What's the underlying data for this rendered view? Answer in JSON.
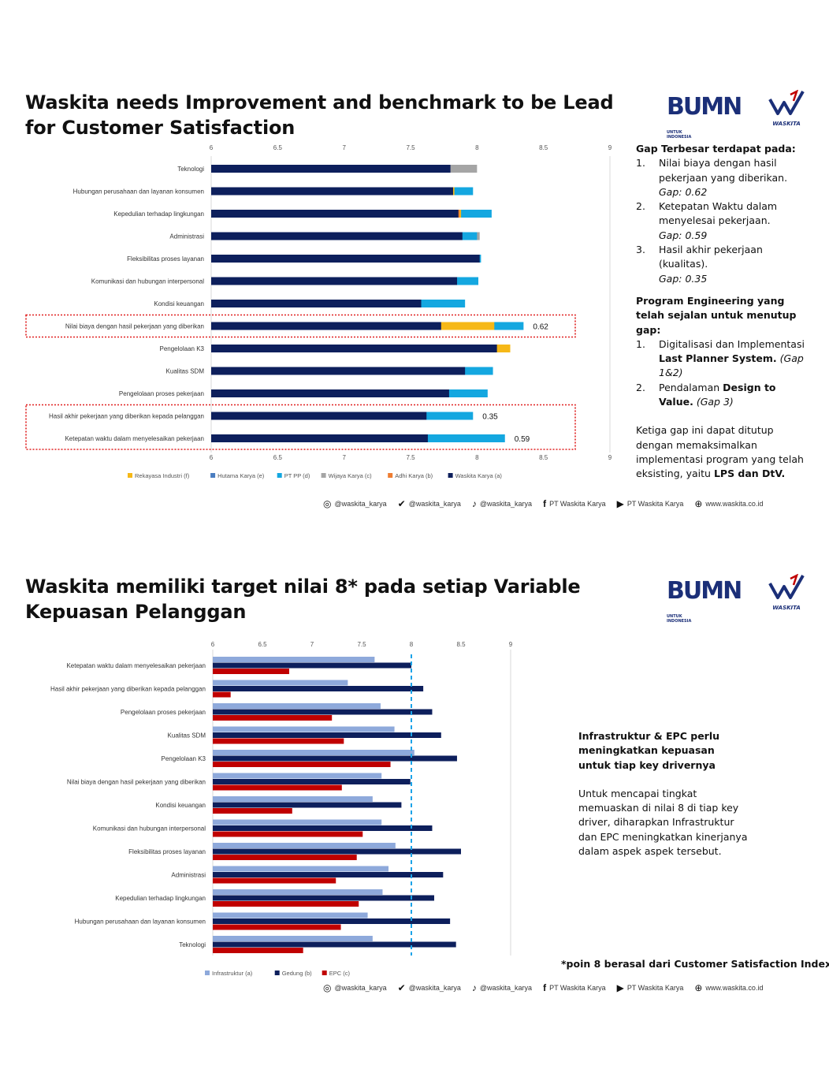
{
  "slide1": {
    "title": "Waskita needs Improvement and benchmark to be Lead for Customer Satisfaction",
    "notes": {
      "gap_heading": "Gap Terbesar terdapat pada:",
      "gaps": [
        {
          "num": "1.",
          "text": "Nilai biaya dengan hasil pekerjaan yang diberikan.",
          "gap": "Gap: 0.62"
        },
        {
          "num": "2.",
          "text": "Ketepatan Waktu dalam menyelesai pekerjaan.",
          "gap": "Gap:  0.59"
        },
        {
          "num": "3.",
          "text": "Hasil akhir pekerjaan (kualitas).",
          "gap": "Gap: 0.35"
        }
      ],
      "program_heading": "Program Engineering yang telah sejalan untuk menutup gap:",
      "programs": [
        {
          "num": "1.",
          "pre": "Digitalisasi dan Implementasi ",
          "bold": "Last Planner System.",
          "italic": " (Gap 1&2)"
        },
        {
          "num": "2.",
          "pre": "Pendalaman ",
          "bold": "Design to Value.",
          "italic": " (Gap 3)"
        }
      ],
      "closing_pre": "Ketiga gap ini dapat ditutup dengan memaksimalkan implementasi program yang telah eksisting, yaitu ",
      "closing_bold": "LPS dan DtV."
    }
  },
  "slide2": {
    "title": "Waskita memiliki target nilai 8* pada setiap Variable Kepuasan Pelanggan",
    "notes": {
      "heading": "Infrastruktur & EPC perlu meningkatkan kepuasan untuk tiap key drivernya",
      "body": "Untuk mencapai tingkat memuaskan di nilai 8 di tiap key driver, diharapkan Infrastruktur dan EPC meningkatkan kinerjanya dalam aspek aspek tersebut.",
      "footnote": "*poin 8 berasal dari Customer Satisfaction Index"
    }
  },
  "logos": {
    "bumn": "BUMN",
    "bumn_sub1": "UNTUK",
    "bumn_sub2": "INDONESIA",
    "waskita": "WASKITA"
  },
  "social": [
    {
      "icon": "instagram-icon",
      "text": "@waskita_karya"
    },
    {
      "icon": "twitter-icon",
      "text": "@waskita_karya"
    },
    {
      "icon": "tiktok-icon",
      "text": "@waskita_karya"
    },
    {
      "icon": "facebook-icon",
      "text": "PT Waskita Karya"
    },
    {
      "icon": "youtube-icon",
      "text": "PT Waskita Karya"
    },
    {
      "icon": "globe-icon",
      "text": "www.waskita.co.id"
    }
  ],
  "chart_data": [
    {
      "type": "bar",
      "orientation": "horizontal",
      "stacked": "overlaid",
      "xlim": [
        6,
        9
      ],
      "ticks": [
        "6",
        "6.5",
        "7",
        "7.5",
        "8",
        "8.5",
        "9"
      ],
      "categories": [
        "Teknologi",
        "Hubungan perusahaan dan layanan konsumen",
        "Kepedulian terhadap lingkungan",
        "Administrasi",
        "Fleksibilitas proses layanan",
        "Komunikasi dan hubungan interpersonal",
        "Kondisi keuangan",
        "Nilai biaya dengan hasil pekerjaan yang diberikan",
        "Pengelolaan K3",
        "Kualitas SDM",
        "Pengelolaan proses pekerjaan",
        "Hasil akhir pekerjaan yang diberikan kepada pelanggan",
        "Ketepatan waktu dalam menyelesaikan pekerjaan"
      ],
      "series": [
        {
          "name": "Rekayasa Industri (f)",
          "color": "#f6b817",
          "values": [
            null,
            7.83,
            7.88,
            null,
            null,
            null,
            null,
            8.13,
            8.25,
            null,
            null,
            null,
            null
          ]
        },
        {
          "name": "Hutama Karya (e)",
          "color": "#4a7dc0",
          "values": [
            null,
            null,
            null,
            null,
            null,
            null,
            null,
            null,
            null,
            null,
            null,
            null,
            null
          ]
        },
        {
          "name": "PT PP (d)",
          "color": "#14a7e0",
          "values": [
            null,
            7.97,
            8.11,
            8.0,
            8.03,
            8.01,
            7.91,
            8.35,
            null,
            8.12,
            8.08,
            7.97,
            8.21
          ]
        },
        {
          "name": "Wijaya Karya (c)",
          "color": "#a5a5a5",
          "values": [
            8.0,
            null,
            null,
            8.02,
            null,
            null,
            null,
            null,
            null,
            null,
            null,
            null,
            null
          ]
        },
        {
          "name": "Adhi Karya (b)",
          "color": "#ee7d31",
          "values": [
            null,
            null,
            7.87,
            null,
            null,
            null,
            null,
            null,
            null,
            null,
            null,
            null,
            null
          ]
        },
        {
          "name": "Waskita Karya (a)",
          "color": "#0d1f5c",
          "values": [
            7.8,
            7.82,
            7.86,
            7.89,
            8.02,
            7.85,
            7.58,
            7.73,
            8.15,
            7.91,
            7.79,
            7.62,
            7.63
          ]
        }
      ],
      "annotations": [
        {
          "category": "Nilai biaya dengan hasil pekerjaan yang diberikan",
          "text": "0.62"
        },
        {
          "category": "Hasil akhir pekerjaan yang diberikan kepada pelanggan",
          "text": "0.35"
        },
        {
          "category": "Ketepatan waktu dalam menyelesaikan pekerjaan",
          "text": "0.59"
        }
      ],
      "highlight_boxes": [
        [
          "Nilai biaya dengan hasil pekerjaan yang diberikan"
        ],
        [
          "Hasil akhir pekerjaan yang diberikan kepada pelanggan",
          "Ketepatan waktu dalam menyelesaikan pekerjaan"
        ]
      ],
      "legend_position": "bottom",
      "grid": false
    },
    {
      "type": "bar",
      "orientation": "horizontal",
      "xlim": [
        6,
        9
      ],
      "ticks": [
        "6",
        "6.5",
        "7",
        "7.5",
        "8",
        "8.5",
        "9"
      ],
      "target_line": 8,
      "categories": [
        "Ketepatan waktu dalam menyelesaikan pekerjaan",
        "Hasil akhir pekerjaan yang diberikan kepada pelanggan",
        "Pengelolaan proses pekerjaan",
        "Kualitas SDM",
        "Pengelolaan K3",
        "Nilai biaya dengan hasil pekerjaan yang diberikan",
        "Kondisi keuangan",
        "Komunikasi dan hubungan interpersonal",
        "Fleksibilitas proses layanan",
        "Administrasi",
        "Kepedulian terhadap lingkungan",
        "Hubungan perusahaan dan layanan konsumen",
        "Teknologi"
      ],
      "series": [
        {
          "name": "Infrastruktur (a)",
          "color": "#8ea9db",
          "values": [
            7.63,
            7.36,
            7.69,
            7.83,
            8.03,
            7.7,
            7.61,
            7.7,
            7.84,
            7.77,
            7.71,
            7.56,
            7.61
          ]
        },
        {
          "name": "Gedung (b)",
          "color": "#0d1f5c",
          "values": [
            8.0,
            8.12,
            8.21,
            8.3,
            8.46,
            7.99,
            7.9,
            8.21,
            8.5,
            8.32,
            8.23,
            8.39,
            8.45
          ]
        },
        {
          "name": "EPC (c)",
          "color": "#c00000",
          "values": [
            6.77,
            6.18,
            7.2,
            7.32,
            7.79,
            7.3,
            6.8,
            7.51,
            7.45,
            7.24,
            7.47,
            7.29,
            6.91
          ]
        }
      ],
      "legend_position": "bottom",
      "grid": false
    }
  ]
}
